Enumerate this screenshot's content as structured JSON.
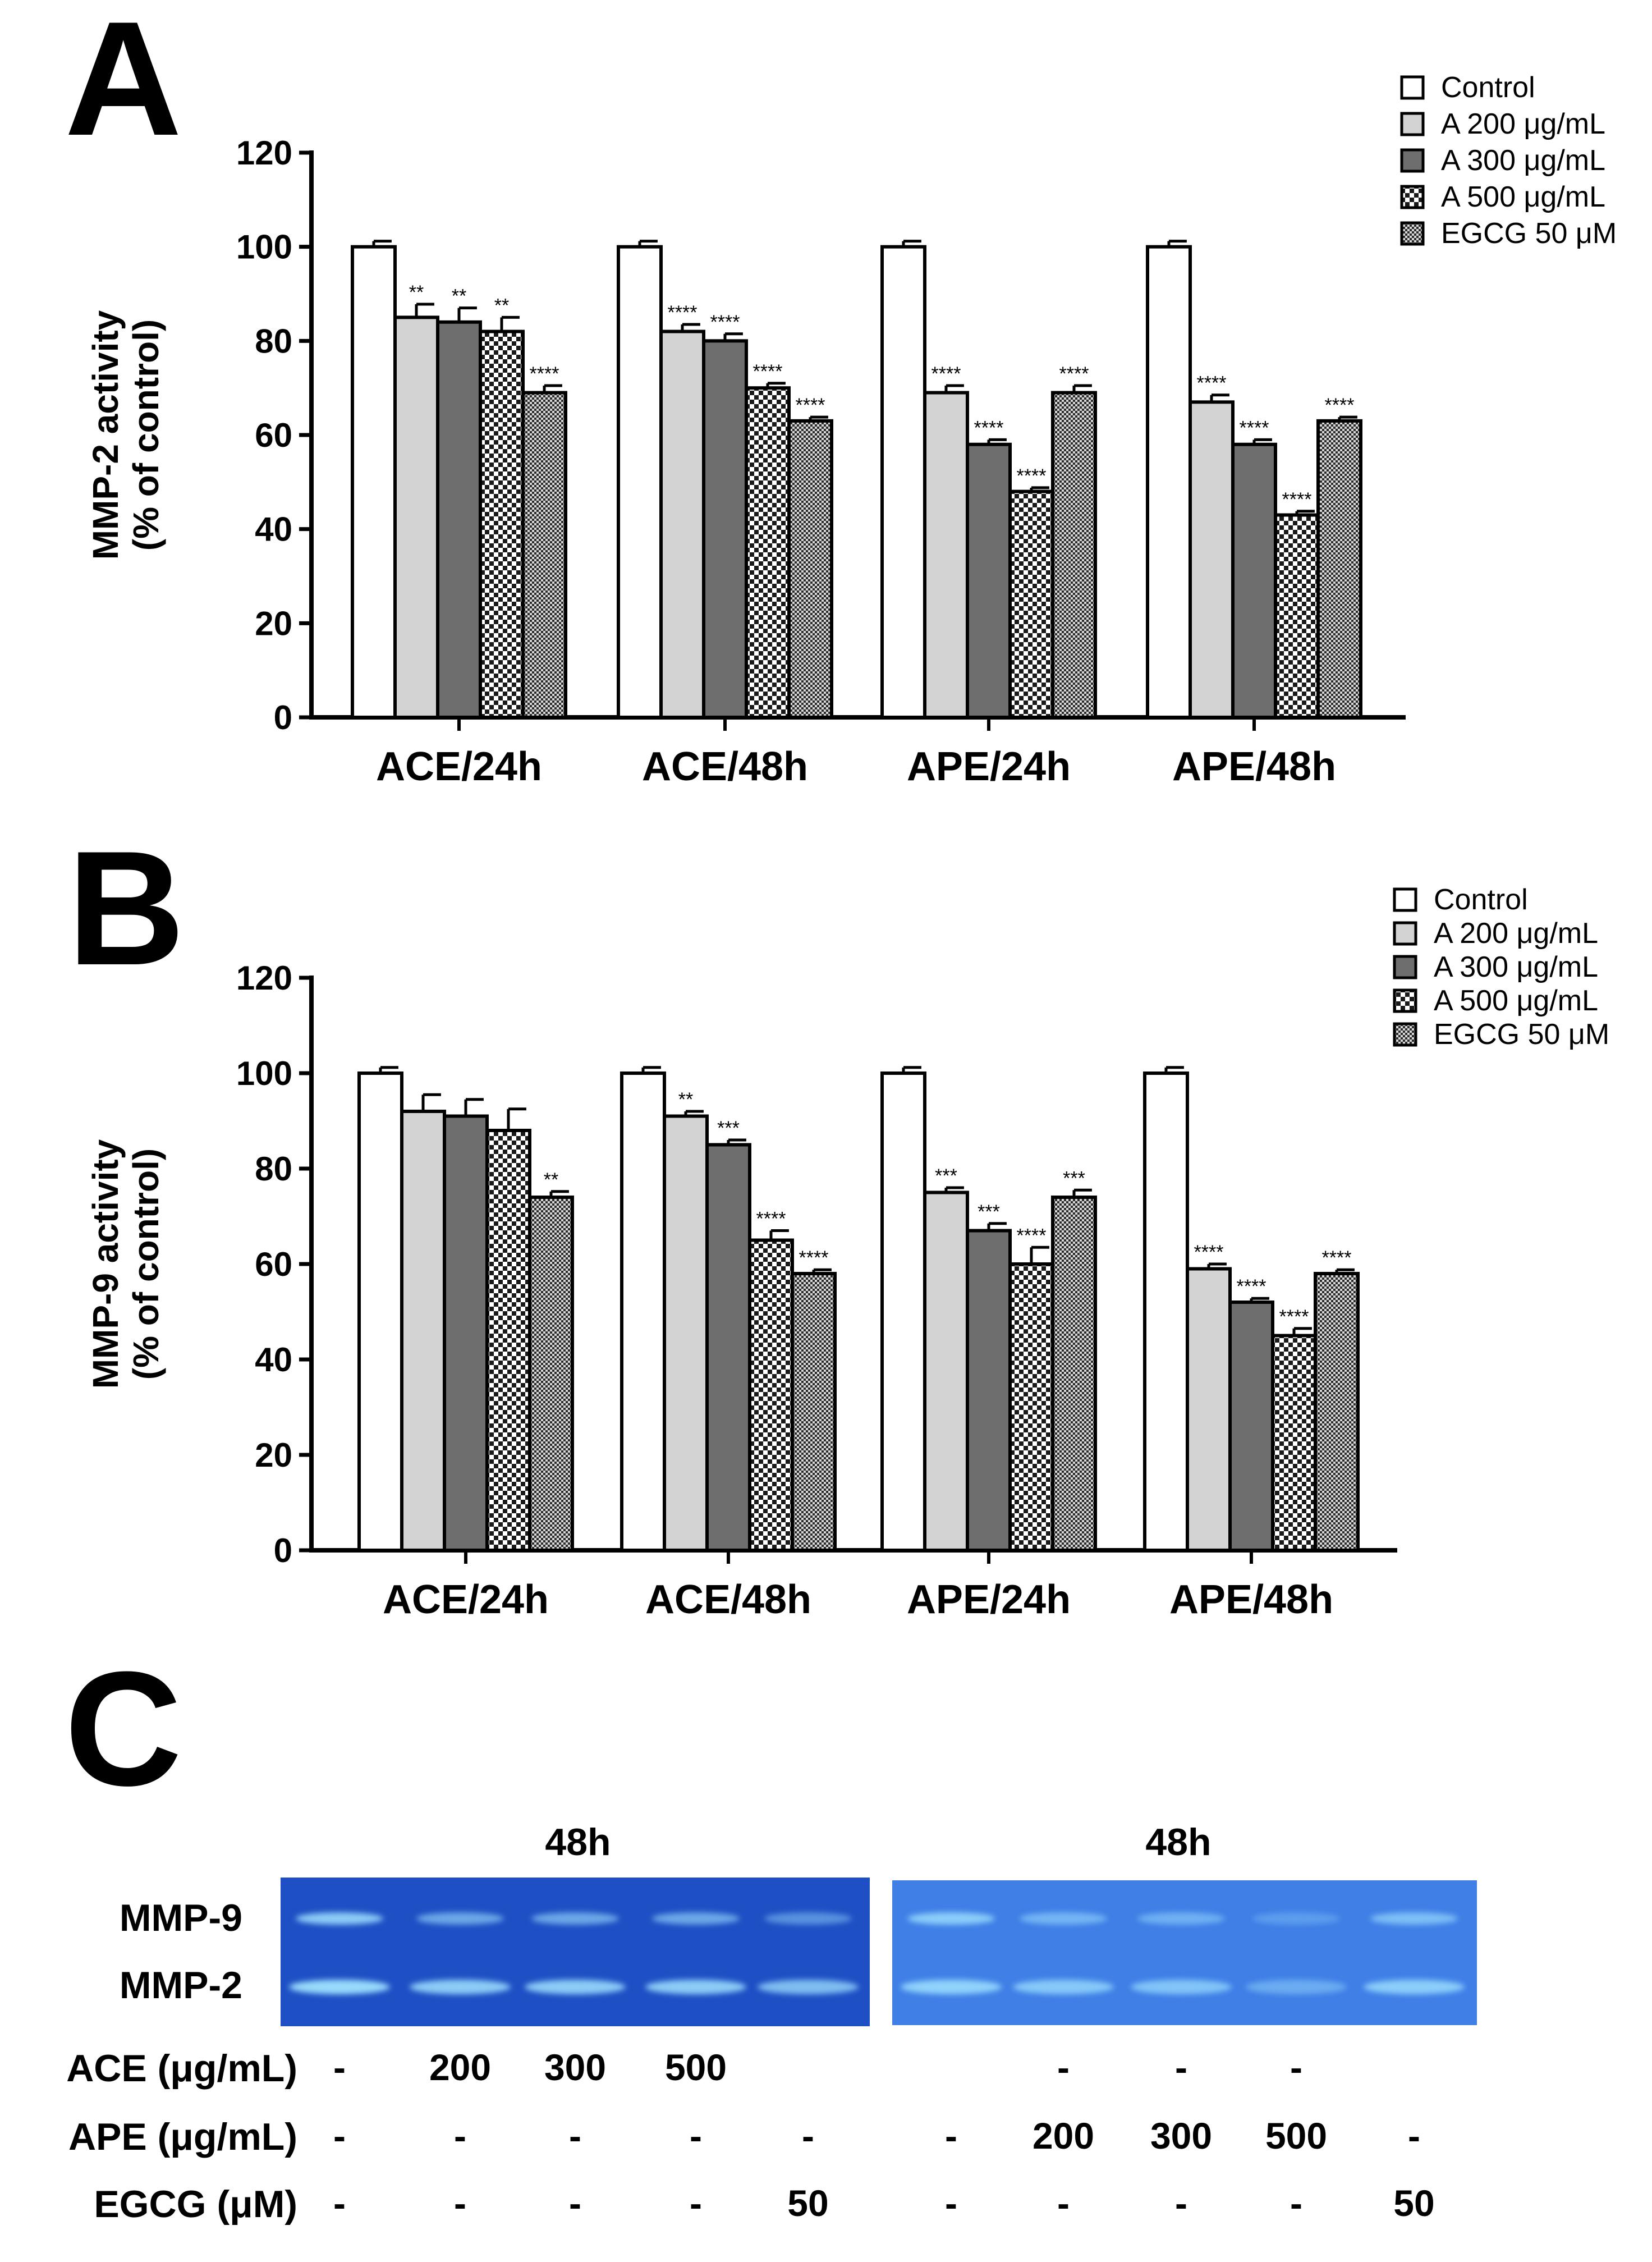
{
  "panels": {
    "a_label": "A",
    "b_label": "B",
    "c_label": "C"
  },
  "colors": {
    "control": "#ffffff",
    "a200": "#d3d3d3",
    "a300": "#6e6e6e",
    "gel_left": "#1f4fc4",
    "gel_right": "#3f7fe6",
    "band": "#9fe2ff"
  },
  "chart_data": [
    {
      "type": "bar",
      "panel": "A",
      "ylabel": "MMP-2 activity",
      "ylabel2": "(% of control)",
      "ylim": [
        0,
        120
      ],
      "yticks": [
        "0",
        "20",
        "40",
        "60",
        "80",
        "100",
        "120"
      ],
      "categories": [
        "ACE/24h",
        "ACE/48h",
        "APE/24h",
        "APE/48h"
      ],
      "legend": [
        "Control",
        "A 200 μg/mL",
        "A 300 μg/mL",
        "A 500 μg/mL",
        "EGCG 50 μM"
      ],
      "series": [
        {
          "name": "Control",
          "values": [
            100,
            100,
            100,
            100
          ],
          "errors": [
            1.2,
            1.2,
            1.2,
            1.2
          ],
          "sig": [
            "",
            "",
            "",
            ""
          ]
        },
        {
          "name": "A 200 μg/mL",
          "values": [
            85,
            82,
            69,
            67
          ],
          "errors": [
            2.8,
            1.5,
            1.5,
            1.5
          ],
          "sig": [
            "**",
            "****",
            "****",
            "****"
          ]
        },
        {
          "name": "A 300 μg/mL",
          "values": [
            84,
            80,
            58,
            58
          ],
          "errors": [
            3.0,
            1.5,
            1.0,
            1.0
          ],
          "sig": [
            "**",
            "****",
            "****",
            "****"
          ]
        },
        {
          "name": "A 500 μg/mL",
          "values": [
            82,
            70,
            48,
            43
          ],
          "errors": [
            3.0,
            1.0,
            0.8,
            0.8
          ],
          "sig": [
            "**",
            "****",
            "****",
            "****"
          ]
        },
        {
          "name": "EGCG 50 μM",
          "values": [
            69,
            63,
            69,
            63
          ],
          "errors": [
            1.5,
            0.8,
            1.5,
            0.8
          ],
          "sig": [
            "****",
            "****",
            "****",
            "****"
          ]
        }
      ]
    },
    {
      "type": "bar",
      "panel": "B",
      "ylabel": "MMP-9 activity",
      "ylabel2": "(% of control)",
      "ylim": [
        0,
        120
      ],
      "yticks": [
        "0",
        "20",
        "40",
        "60",
        "80",
        "100",
        "120"
      ],
      "categories": [
        "ACE/24h",
        "ACE/48h",
        "APE/24h",
        "APE/48h"
      ],
      "legend": [
        "Control",
        "A 200 μg/mL",
        "A 300 μg/mL",
        "A 500 μg/mL",
        "EGCG 50 μM"
      ],
      "series": [
        {
          "name": "Control",
          "values": [
            100,
            100,
            100,
            100
          ],
          "errors": [
            1.2,
            1.2,
            1.2,
            1.2
          ],
          "sig": [
            "",
            "",
            "",
            ""
          ]
        },
        {
          "name": "A 200 μg/mL",
          "values": [
            92,
            91,
            75,
            59
          ],
          "errors": [
            3.5,
            1.0,
            1.0,
            1.0
          ],
          "sig": [
            "",
            "**",
            "***",
            "****"
          ]
        },
        {
          "name": "A 300 μg/mL",
          "values": [
            91,
            85,
            67,
            52
          ],
          "errors": [
            3.5,
            1.0,
            1.5,
            0.8
          ],
          "sig": [
            "",
            "***",
            "***",
            "****"
          ]
        },
        {
          "name": "A 500 μg/mL",
          "values": [
            88,
            65,
            60,
            45
          ],
          "errors": [
            4.5,
            2.0,
            3.5,
            1.5
          ],
          "sig": [
            "",
            "****",
            "****",
            "****"
          ]
        },
        {
          "name": "EGCG 50 μM",
          "values": [
            74,
            58,
            74,
            58
          ],
          "errors": [
            1.2,
            0.8,
            1.5,
            0.8
          ],
          "sig": [
            "**",
            "****",
            "***",
            "****"
          ]
        }
      ]
    }
  ],
  "gel": {
    "left_title": "48h",
    "right_title": "48h",
    "row_mmp9": "MMP-9",
    "row_mmp2": "MMP-2",
    "rows": [
      {
        "label": "ACE (μg/mL)",
        "values": [
          "-",
          "200",
          "300",
          "500",
          "",
          "",
          "-",
          "-",
          "-",
          ""
        ]
      },
      {
        "label": "APE (μg/mL)",
        "values": [
          "-",
          "-",
          "-",
          "-",
          "-",
          "-",
          "200",
          "300",
          "500",
          "-"
        ]
      },
      {
        "label": "EGCG (μM)",
        "values": [
          "-",
          "-",
          "-",
          "-",
          "50",
          "-",
          "-",
          "-",
          "-",
          "50"
        ]
      }
    ],
    "mmp9_intensity": [
      0.85,
      0.6,
      0.6,
      0.6,
      0.45,
      0.8,
      0.55,
      0.5,
      0.3,
      0.65
    ],
    "mmp2_intensity": [
      0.95,
      0.85,
      0.85,
      0.85,
      0.75,
      0.85,
      0.75,
      0.7,
      0.45,
      0.8
    ]
  }
}
